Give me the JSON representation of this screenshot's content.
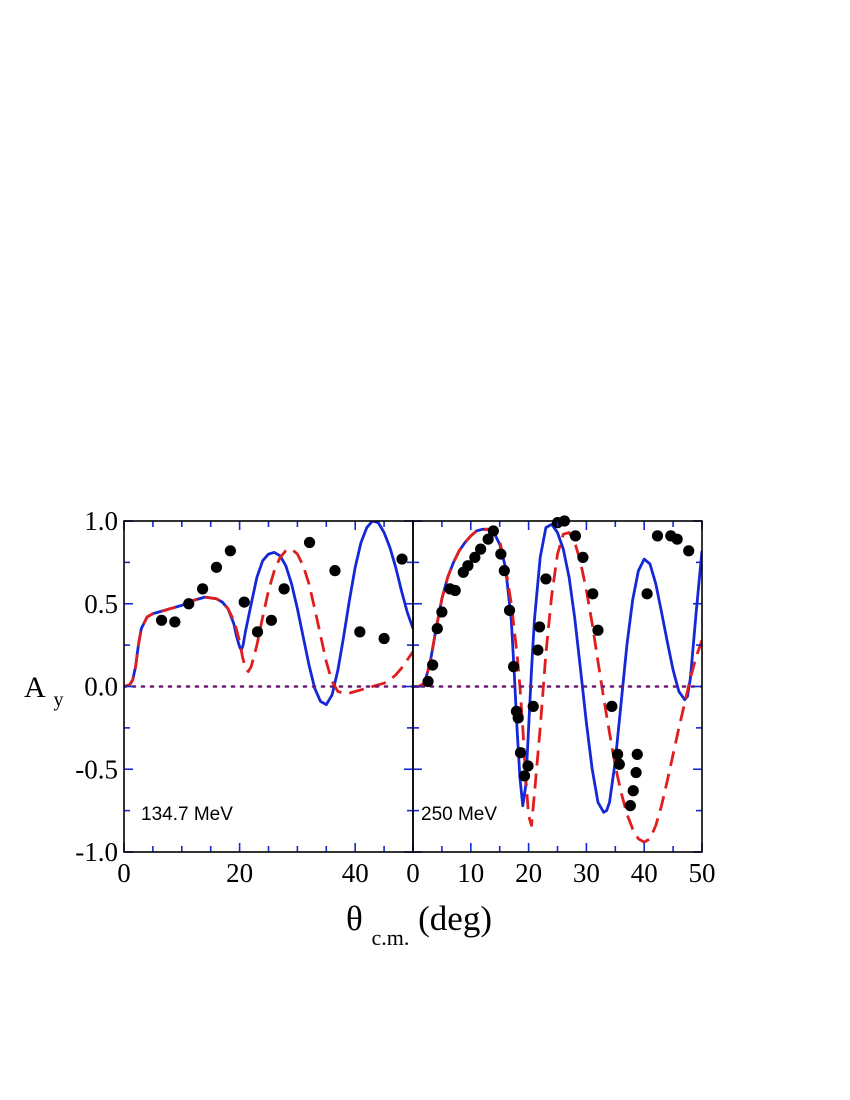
{
  "chart_data": [
    {
      "type": "scatter",
      "panel_label": "134.7 MeV",
      "xlim": [
        0,
        50
      ],
      "ylim": [
        -1.0,
        1.0
      ],
      "xticks": [
        {
          "value": 0,
          "label": "0"
        },
        {
          "value": 20,
          "label": "20"
        },
        {
          "value": 40,
          "label": "40"
        }
      ],
      "yticks": [
        {
          "value": 1.0,
          "label": "1.0"
        },
        {
          "value": 0.5,
          "label": "0.5"
        },
        {
          "value": 0.0,
          "label": "0.0"
        },
        {
          "value": -0.5,
          "label": "-0.5"
        },
        {
          "value": -1.0,
          "label": "-1.0"
        }
      ],
      "grid": false,
      "colors": {
        "solid": "#1428d8",
        "dashed": "#e01e1e",
        "reference": "#6a1a70",
        "data": "#000000"
      },
      "series": [
        {
          "style": "points",
          "points": [
            [
              6.5,
              0.4
            ],
            [
              8.8,
              0.39
            ],
            [
              11.2,
              0.5
            ],
            [
              13.6,
              0.59
            ],
            [
              16,
              0.72
            ],
            [
              18.4,
              0.82
            ],
            [
              20.8,
              0.51
            ],
            [
              23.1,
              0.33
            ],
            [
              25.5,
              0.4
            ],
            [
              27.7,
              0.59
            ],
            [
              32.1,
              0.87
            ],
            [
              36.5,
              0.7
            ],
            [
              40.8,
              0.33
            ],
            [
              45,
              0.29
            ],
            [
              48.1,
              0.77
            ]
          ]
        },
        {
          "style": "solid",
          "x": [
            0,
            1,
            1.5,
            2,
            2.5,
            3,
            4,
            5,
            6,
            7,
            8,
            10,
            12,
            14,
            16,
            17,
            18,
            19,
            19.5,
            20,
            20.3,
            20.6,
            21,
            22,
            23,
            24,
            25,
            26,
            27,
            28,
            29,
            30,
            31,
            32,
            33,
            34,
            35,
            36,
            37,
            38,
            39,
            40,
            41,
            42,
            43,
            44,
            45,
            46,
            47,
            48,
            49,
            50
          ],
          "y": [
            0.0,
            0.01,
            0.04,
            0.12,
            0.25,
            0.35,
            0.42,
            0.44,
            0.45,
            0.46,
            0.47,
            0.49,
            0.52,
            0.54,
            0.53,
            0.51,
            0.47,
            0.38,
            0.3,
            0.24,
            0.22,
            0.25,
            0.33,
            0.5,
            0.66,
            0.76,
            0.8,
            0.81,
            0.79,
            0.73,
            0.62,
            0.47,
            0.3,
            0.13,
            -0.01,
            -0.09,
            -0.11,
            -0.05,
            0.1,
            0.3,
            0.52,
            0.72,
            0.87,
            0.96,
            1.0,
            0.99,
            0.93,
            0.84,
            0.72,
            0.58,
            0.45,
            0.35
          ]
        },
        {
          "style": "dashed",
          "x": [
            0,
            1,
            1.5,
            2,
            2.5,
            3,
            4,
            5,
            6,
            7,
            8,
            10,
            12,
            14,
            16,
            17,
            18,
            19,
            19.5,
            20,
            20.5,
            21,
            21.5,
            22,
            23,
            24,
            25,
            26,
            27,
            28,
            29,
            30,
            31,
            32,
            33,
            34,
            35,
            36,
            37,
            38,
            39,
            40,
            41,
            42,
            43,
            44,
            45,
            46,
            47,
            48,
            49,
            50
          ],
          "y": [
            0.0,
            0.01,
            0.04,
            0.12,
            0.25,
            0.35,
            0.42,
            0.44,
            0.45,
            0.46,
            0.47,
            0.49,
            0.52,
            0.54,
            0.53,
            0.51,
            0.47,
            0.4,
            0.34,
            0.27,
            0.18,
            0.11,
            0.09,
            0.12,
            0.25,
            0.42,
            0.58,
            0.7,
            0.78,
            0.82,
            0.83,
            0.8,
            0.73,
            0.62,
            0.47,
            0.31,
            0.15,
            0.03,
            -0.03,
            -0.04,
            -0.04,
            -0.03,
            -0.02,
            -0.01,
            0.0,
            0.01,
            0.02,
            0.04,
            0.07,
            0.11,
            0.16,
            0.21
          ]
        },
        {
          "style": "dotted",
          "x": [
            0,
            50
          ],
          "y": [
            0,
            0
          ]
        }
      ]
    },
    {
      "type": "scatter",
      "panel_label": "250 MeV",
      "xlim": [
        0,
        50
      ],
      "ylim": [
        -1.0,
        1.0
      ],
      "xticks": [
        {
          "value": 0,
          "label": "0"
        },
        {
          "value": 10,
          "label": "10"
        },
        {
          "value": 20,
          "label": "20"
        },
        {
          "value": 30,
          "label": "30"
        },
        {
          "value": 40,
          "label": "40"
        },
        {
          "value": 50,
          "label": "50"
        }
      ],
      "grid": false,
      "colors": {
        "solid": "#1428d8",
        "dashed": "#e01e1e",
        "reference": "#6a1a70",
        "data": "#000000"
      },
      "series": [
        {
          "style": "points",
          "points": [
            [
              2.6,
              0.03
            ],
            [
              3.4,
              0.13
            ],
            [
              4.2,
              0.35
            ],
            [
              5,
              0.45
            ],
            [
              6.4,
              0.59
            ],
            [
              7.3,
              0.58
            ],
            [
              8.7,
              0.69
            ],
            [
              9.5,
              0.73
            ],
            [
              10.7,
              0.78
            ],
            [
              11.7,
              0.83
            ],
            [
              13,
              0.89
            ],
            [
              13.9,
              0.94
            ],
            [
              15.2,
              0.8
            ],
            [
              15.8,
              0.7
            ],
            [
              16.7,
              0.46
            ],
            [
              17.4,
              0.12
            ],
            [
              17.9,
              -0.15
            ],
            [
              18.2,
              -0.19
            ],
            [
              18.6,
              -0.4
            ],
            [
              19.3,
              -0.54
            ],
            [
              19.9,
              -0.48
            ],
            [
              20.8,
              -0.12
            ],
            [
              21.6,
              0.22
            ],
            [
              21.9,
              0.36
            ],
            [
              23,
              0.65
            ],
            [
              25,
              0.99
            ],
            [
              26.2,
              1.0
            ],
            [
              28.1,
              0.91
            ],
            [
              29.4,
              0.78
            ],
            [
              31.1,
              0.56
            ],
            [
              32,
              0.34
            ],
            [
              34.4,
              -0.12
            ],
            [
              35.4,
              -0.41
            ],
            [
              35.7,
              -0.47
            ],
            [
              37.6,
              -0.72
            ],
            [
              38.1,
              -0.63
            ],
            [
              38.6,
              -0.52
            ],
            [
              38.8,
              -0.41
            ],
            [
              40.5,
              0.56
            ],
            [
              42.3,
              0.91
            ],
            [
              44.6,
              0.91
            ],
            [
              45.7,
              0.89
            ],
            [
              47.7,
              0.82
            ]
          ]
        },
        {
          "style": "solid",
          "x": [
            0,
            1,
            2,
            3,
            4,
            5,
            6,
            7,
            8,
            9,
            10,
            11,
            12,
            13,
            14,
            15,
            16,
            17,
            17.5,
            18,
            18.5,
            19,
            19.5,
            20,
            20.5,
            21,
            22,
            23,
            24,
            25,
            26,
            27,
            28,
            29,
            30,
            31,
            32,
            33,
            33.5,
            34,
            35,
            36,
            37,
            38,
            39,
            40,
            41,
            42,
            43,
            44,
            45,
            46,
            47,
            47.5,
            48,
            49,
            50
          ],
          "y": [
            0.0,
            0.0,
            0.02,
            0.15,
            0.35,
            0.53,
            0.66,
            0.75,
            0.82,
            0.87,
            0.91,
            0.94,
            0.95,
            0.95,
            0.93,
            0.86,
            0.72,
            0.4,
            0.1,
            -0.25,
            -0.55,
            -0.72,
            -0.6,
            -0.25,
            0.1,
            0.4,
            0.78,
            0.96,
            0.98,
            0.93,
            0.83,
            0.66,
            0.41,
            0.1,
            -0.22,
            -0.5,
            -0.7,
            -0.76,
            -0.75,
            -0.7,
            -0.45,
            -0.1,
            0.25,
            0.52,
            0.7,
            0.77,
            0.74,
            0.62,
            0.45,
            0.27,
            0.1,
            -0.03,
            -0.08,
            -0.06,
            0.05,
            0.45,
            0.82
          ]
        },
        {
          "style": "dashed",
          "x": [
            0,
            1,
            2,
            3,
            4,
            5,
            6,
            7,
            8,
            9,
            10,
            11,
            12,
            13,
            14,
            15,
            16,
            17,
            18,
            18.5,
            19,
            19.5,
            20,
            20.5,
            21,
            21.5,
            22,
            23,
            24,
            25,
            26,
            27,
            28,
            29,
            30,
            31,
            32,
            33,
            34,
            35,
            36,
            37,
            38,
            39,
            40,
            41,
            42,
            43,
            44,
            45,
            46,
            47,
            48,
            49,
            50
          ],
          "y": [
            0.0,
            0.0,
            0.02,
            0.15,
            0.35,
            0.53,
            0.66,
            0.75,
            0.82,
            0.87,
            0.91,
            0.94,
            0.95,
            0.95,
            0.93,
            0.88,
            0.72,
            0.5,
            0.2,
            0.0,
            -0.25,
            -0.55,
            -0.78,
            -0.84,
            -0.65,
            -0.45,
            -0.25,
            0.2,
            0.55,
            0.8,
            0.92,
            0.93,
            0.87,
            0.75,
            0.58,
            0.38,
            0.15,
            -0.07,
            -0.28,
            -0.48,
            -0.64,
            -0.77,
            -0.86,
            -0.92,
            -0.94,
            -0.92,
            -0.84,
            -0.72,
            -0.57,
            -0.41,
            -0.25,
            -0.1,
            0.05,
            0.18,
            0.28
          ]
        },
        {
          "style": "dotted",
          "x": [
            0,
            50
          ],
          "y": [
            0,
            0
          ]
        }
      ]
    }
  ],
  "axes": {
    "y_label_main": "A",
    "y_label_sub": "y",
    "x_label_main": "θ",
    "x_label_sub": "c.m.",
    "x_label_unit": "(deg)"
  }
}
